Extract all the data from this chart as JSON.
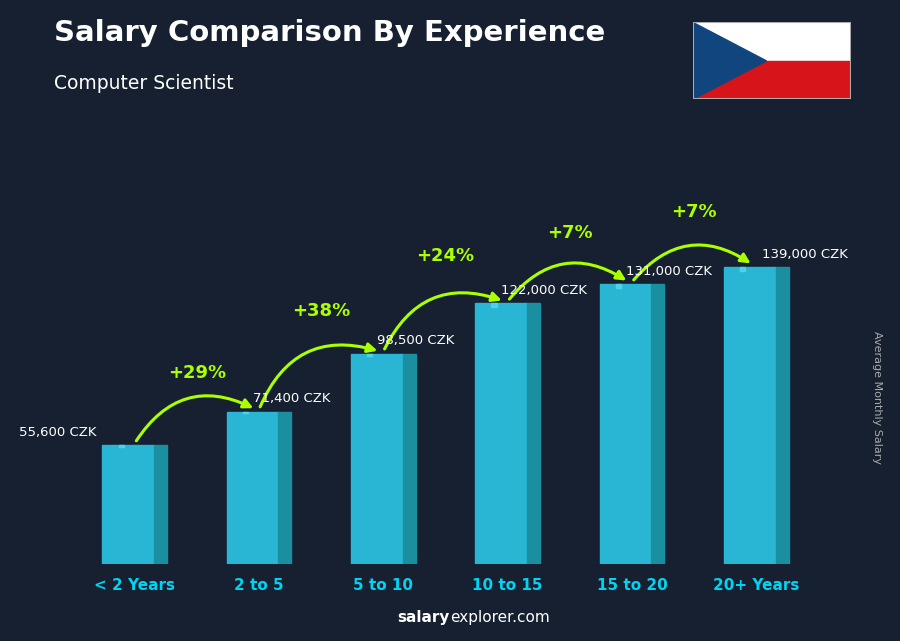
{
  "title": "Salary Comparison By Experience",
  "subtitle": "Computer Scientist",
  "categories": [
    "< 2 Years",
    "2 to 5",
    "5 to 10",
    "10 to 15",
    "15 to 20",
    "20+ Years"
  ],
  "values": [
    55600,
    71400,
    98500,
    122000,
    131000,
    139000
  ],
  "value_labels": [
    "55,600 CZK",
    "71,400 CZK",
    "98,500 CZK",
    "122,000 CZK",
    "131,000 CZK",
    "139,000 CZK"
  ],
  "pct_changes": [
    "+29%",
    "+38%",
    "+24%",
    "+7%",
    "+7%"
  ],
  "bar_color": "#29b6d5",
  "bar_color_right": "#1a8fa0",
  "bar_color_highlight": "#55d4e8",
  "background_color": "#162030",
  "title_color": "#ffffff",
  "subtitle_color": "#ffffff",
  "value_label_color": "#ffffff",
  "pct_color": "#aaff00",
  "xtick_color": "#00d4f0",
  "ylabel_text": "Average Monthly Salary",
  "ymax": 165000,
  "bar_width": 0.52
}
